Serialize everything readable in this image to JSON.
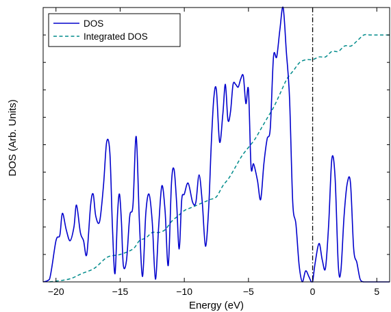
{
  "chart_data": {
    "type": "line",
    "title": "",
    "xlabel": "Energy  (eV)",
    "ylabel": "DOS  (Arb. Units)",
    "xlim": [
      -21,
      6
    ],
    "ylim": [
      0,
      1
    ],
    "x_ticks": [
      "-20",
      "-15",
      "-10",
      "-5",
      "0",
      "5"
    ],
    "x_tick_values": [
      -20,
      -15,
      -10,
      -5,
      0,
      5
    ],
    "y_ticks_labeled": false,
    "grid": false,
    "legend_position": "top-left",
    "fermi_level_line": {
      "x": 0,
      "style": "dash-dot",
      "color": "#000000"
    },
    "series": [
      {
        "name": "DOS",
        "style": "solid",
        "color": "#0000cc",
        "x": [
          -21.0,
          -20.5,
          -20.0,
          -19.7,
          -19.5,
          -19.2,
          -18.9,
          -18.6,
          -18.4,
          -18.1,
          -17.85,
          -17.6,
          -17.3,
          -17.1,
          -16.9,
          -16.6,
          -16.3,
          -16.05,
          -15.8,
          -15.6,
          -15.4,
          -15.2,
          -15.05,
          -14.9,
          -14.75,
          -14.5,
          -14.25,
          -14.0,
          -13.75,
          -13.5,
          -13.25,
          -13.0,
          -12.75,
          -12.5,
          -12.25,
          -12.0,
          -11.75,
          -11.5,
          -11.25,
          -11.0,
          -10.8,
          -10.6,
          -10.4,
          -10.2,
          -10.0,
          -9.7,
          -9.35,
          -9.1,
          -8.85,
          -8.6,
          -8.35,
          -8.1,
          -7.9,
          -7.7,
          -7.5,
          -7.25,
          -7.0,
          -6.8,
          -6.6,
          -6.4,
          -6.2,
          -6.0,
          -5.8,
          -5.6,
          -5.4,
          -5.2,
          -5.0,
          -4.8,
          -4.6,
          -4.3,
          -4.05,
          -3.8,
          -3.55,
          -3.3,
          -3.05,
          -2.8,
          -2.55,
          -2.3,
          -2.05,
          -1.8,
          -1.55,
          -1.3,
          -1.05,
          -0.8,
          -0.55,
          -0.3,
          -0.1,
          0.0,
          0.2,
          0.5,
          0.75,
          1.0,
          1.25,
          1.5,
          1.75,
          2.0,
          2.2,
          2.45,
          2.7,
          2.95,
          3.2,
          3.45,
          3.7,
          3.95,
          4.2,
          4.6,
          5.0,
          5.5,
          6.0
        ],
        "y": [
          0.0,
          0.01,
          0.15,
          0.17,
          0.25,
          0.19,
          0.15,
          0.2,
          0.28,
          0.18,
          0.15,
          0.1,
          0.28,
          0.32,
          0.24,
          0.22,
          0.35,
          0.51,
          0.47,
          0.2,
          0.03,
          0.25,
          0.32,
          0.22,
          0.06,
          0.08,
          0.24,
          0.28,
          0.53,
          0.22,
          0.02,
          0.25,
          0.32,
          0.22,
          0.01,
          0.2,
          0.35,
          0.26,
          0.06,
          0.36,
          0.41,
          0.29,
          0.12,
          0.3,
          0.32,
          0.36,
          0.29,
          0.29,
          0.39,
          0.29,
          0.13,
          0.27,
          0.5,
          0.67,
          0.7,
          0.51,
          0.61,
          0.72,
          0.59,
          0.62,
          0.72,
          0.72,
          0.71,
          0.74,
          0.75,
          0.65,
          0.7,
          0.42,
          0.43,
          0.37,
          0.3,
          0.43,
          0.52,
          0.56,
          0.82,
          0.82,
          0.92,
          1.0,
          0.84,
          0.67,
          0.29,
          0.21,
          0.06,
          0.0,
          0.04,
          0.02,
          0.0,
          0.0,
          0.07,
          0.14,
          0.08,
          0.05,
          0.21,
          0.45,
          0.38,
          0.06,
          0.04,
          0.24,
          0.36,
          0.36,
          0.12,
          0.07,
          0.01,
          0.0,
          0.0,
          0.0,
          0.0,
          0.0,
          0.0
        ]
      },
      {
        "name": "Integrated DOS",
        "style": "dashed",
        "color": "#008b8b",
        "x": [
          -20.5,
          -19.0,
          -18.0,
          -17.0,
          -16.0,
          -15.0,
          -14.0,
          -13.5,
          -13.0,
          -12.5,
          -12.0,
          -11.5,
          -11.0,
          -10.5,
          -10.0,
          -9.5,
          -9.0,
          -8.5,
          -8.0,
          -7.5,
          -7.0,
          -6.5,
          -6.0,
          -5.5,
          -5.0,
          -4.5,
          -4.0,
          -3.5,
          -3.0,
          -2.5,
          -2.0,
          -1.5,
          -1.0,
          -0.5,
          0.0,
          0.5,
          1.0,
          1.5,
          2.0,
          2.5,
          3.0,
          3.5,
          4.0,
          4.5,
          5.0,
          5.5,
          6.0
        ],
        "y": [
          0.0,
          0.01,
          0.03,
          0.05,
          0.09,
          0.1,
          0.12,
          0.15,
          0.16,
          0.18,
          0.18,
          0.19,
          0.22,
          0.24,
          0.26,
          0.27,
          0.28,
          0.29,
          0.3,
          0.31,
          0.35,
          0.38,
          0.42,
          0.46,
          0.49,
          0.52,
          0.56,
          0.6,
          0.64,
          0.69,
          0.74,
          0.77,
          0.8,
          0.81,
          0.81,
          0.82,
          0.82,
          0.84,
          0.84,
          0.86,
          0.86,
          0.88,
          0.9,
          0.9,
          0.9,
          0.9,
          0.9
        ]
      }
    ]
  }
}
